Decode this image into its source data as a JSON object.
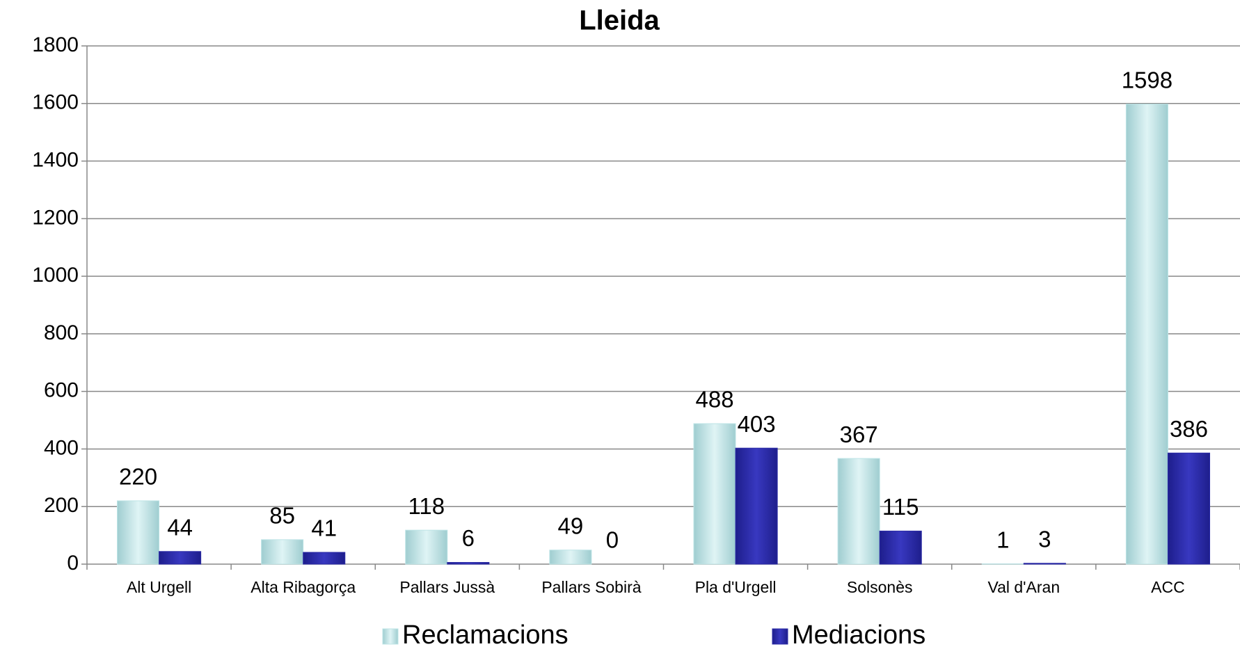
{
  "chart_data": {
    "type": "bar",
    "title": "Lleida",
    "categories": [
      "Alt Urgell",
      "Alta Ribagorça",
      "Pallars Jussà",
      "Pallars Sobirà",
      "Pla d'Urgell",
      "Solsonès",
      "Val d'Aran",
      "ACC"
    ],
    "series": [
      {
        "name": "Reclamacions",
        "color": "#bde4e6",
        "values": [
          220,
          85,
          118,
          49,
          488,
          367,
          1,
          1598
        ]
      },
      {
        "name": "Mediacions",
        "color": "#2b2ba6",
        "values": [
          44,
          41,
          6,
          0,
          403,
          115,
          3,
          386
        ]
      }
    ],
    "ylim": [
      0,
      1800
    ],
    "yticks": [
      0,
      200,
      400,
      600,
      800,
      1000,
      1200,
      1400,
      1600,
      1800
    ],
    "grid": true,
    "legend": "bottom"
  }
}
